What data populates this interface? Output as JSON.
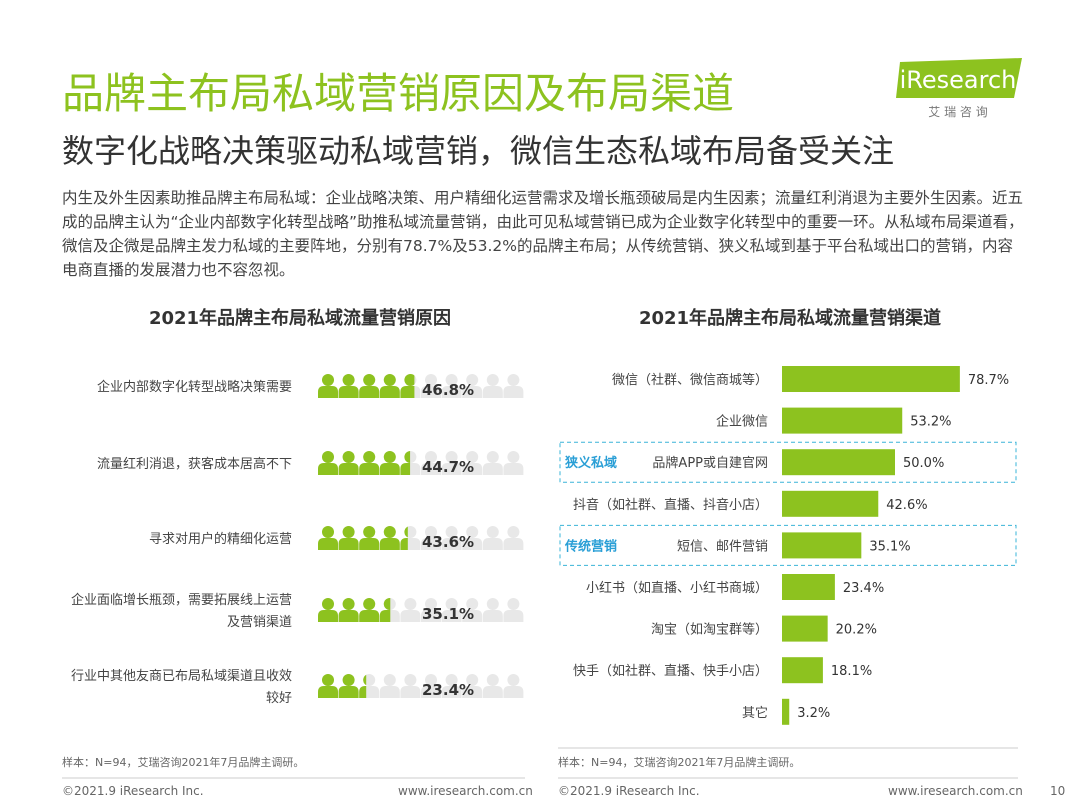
{
  "header": {
    "title": "品牌主布局私域营销原因及布局渠道",
    "subtitle": "数字化战略决策驱动私域营销，微信生态私域布局备受关注",
    "logo": "iResearch",
    "logo_cn": "艾 瑞 咨 询",
    "paragraph": "内生及外生因素助推品牌主布局私域：企业战略决策、用户精细化运营需求及增长瓶颈破局是内生因素；流量红利消退为主要外生因素。近五成的品牌主认为“企业内部数字化转型战略”助推私域流量营销，由此可见私域营销已成为企业数字化转型中的重要一环。从私域布局渠道看，微信及企微是品牌主发力私域的主要阵地，分别有78.7%及53.2%的品牌主布局；从传统营销、狭义私域到基于平台私域出口的营销，内容电商直播的发展潜力也不容忽视。"
  },
  "chart_data": [
    {
      "type": "pictogram",
      "title": "2021年品牌主布局私域流量营销原因",
      "categories": [
        "企业内部数字化转型战略决策需要",
        "流量红利消退，获客成本居高不下",
        "寻求对用户的精细化运营",
        "企业面临增长瓶颈，需要拓展线上运营及营销渠道",
        "行业中其他友商已布局私域渠道且收效较好"
      ],
      "values": [
        46.8,
        44.7,
        43.6,
        35.1,
        23.4
      ],
      "value_labels": [
        "46.8%",
        "44.7%",
        "43.6%",
        "35.1%",
        "23.4%"
      ],
      "color": "#8dc21f",
      "source": "样本：N=94，艾瑞咨询2021年7月品牌主调研。"
    },
    {
      "type": "bar",
      "title": "2021年品牌主布局私域流量营销渠道",
      "categories": [
        "微信（社群、微信商城等）",
        "企业微信",
        "品牌APP或自建官网",
        "抖音（如社群、直播、抖音小店）",
        "短信、邮件营销",
        "小红书（如直播、小红书商城）",
        "淘宝（如淘宝群等）",
        "快手（如社群、直播、快手小店）",
        "其它"
      ],
      "values": [
        78.7,
        53.2,
        50.0,
        42.6,
        35.1,
        23.4,
        20.2,
        18.1,
        3.2
      ],
      "value_labels": [
        "78.7%",
        "53.2%",
        "50.0%",
        "42.6%",
        "35.1%",
        "23.4%",
        "20.2%",
        "18.1%",
        "3.2%"
      ],
      "color": "#8dc21f",
      "annotations": [
        "狭义私域",
        "传统营销"
      ],
      "source": "样本：N=94，艾瑞咨询2021年7月品牌主调研。"
    }
  ],
  "footer": {
    "left": "©2021.9 iResearch Inc.",
    "left_url": "www.iresearch.com.cn",
    "right": "©2021.9 iResearch Inc.",
    "right_url": "www.iresearch.com.cn",
    "page": "10"
  }
}
